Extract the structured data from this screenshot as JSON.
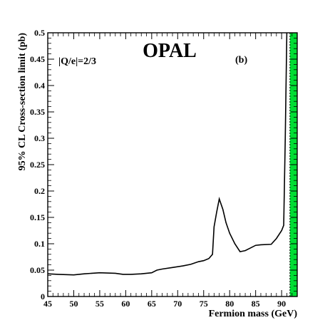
{
  "chart_data": {
    "type": "line",
    "title": "OPAL",
    "panel_label": "(b)",
    "annotation": "|Q/e|=2/3",
    "xlabel": "Fermion mass (GeV)",
    "ylabel": "95% CL Cross-section limit (pb)",
    "xlim": [
      45,
      93
    ],
    "ylim": [
      0,
      0.5
    ],
    "x_ticks": [
      45,
      50,
      55,
      60,
      65,
      70,
      75,
      80,
      85,
      90
    ],
    "y_ticks": [
      0,
      0.05,
      0.1,
      0.15,
      0.2,
      0.25,
      0.3,
      0.35,
      0.4,
      0.45,
      0.5
    ],
    "x_tick_labels": [
      "45",
      "50",
      "55",
      "60",
      "65",
      "70",
      "75",
      "80",
      "85",
      "90"
    ],
    "y_tick_labels": [
      "0",
      "0.05",
      "0.1",
      "0.15",
      "0.2",
      "0.25",
      "0.3",
      "0.35",
      "0.4",
      "0.45",
      "0.5"
    ],
    "excluded_band": {
      "x_start": 91.6,
      "x_end": 93,
      "color": "#00dd33"
    },
    "series": [
      {
        "color": "#000000",
        "points": [
          [
            45,
            0.043
          ],
          [
            47,
            0.042
          ],
          [
            50,
            0.041
          ],
          [
            52,
            0.043
          ],
          [
            55,
            0.045
          ],
          [
            58,
            0.044
          ],
          [
            59.5,
            0.042
          ],
          [
            61,
            0.042
          ],
          [
            63,
            0.043
          ],
          [
            65,
            0.045
          ],
          [
            66,
            0.05
          ],
          [
            67,
            0.052
          ],
          [
            69,
            0.055
          ],
          [
            71,
            0.058
          ],
          [
            72.5,
            0.061
          ],
          [
            74,
            0.066
          ],
          [
            75,
            0.068
          ],
          [
            76,
            0.072
          ],
          [
            76.7,
            0.08
          ],
          [
            77,
            0.132
          ],
          [
            77.5,
            0.16
          ],
          [
            78,
            0.185
          ],
          [
            78.7,
            0.165
          ],
          [
            79.3,
            0.14
          ],
          [
            80,
            0.12
          ],
          [
            81,
            0.1
          ],
          [
            82,
            0.085
          ],
          [
            83,
            0.087
          ],
          [
            84,
            0.092
          ],
          [
            85,
            0.097
          ],
          [
            86,
            0.098
          ],
          [
            88,
            0.099
          ],
          [
            89,
            0.11
          ],
          [
            90,
            0.125
          ],
          [
            90.4,
            0.135
          ],
          [
            90.7,
            0.3
          ],
          [
            91.0,
            0.5
          ]
        ]
      }
    ]
  }
}
